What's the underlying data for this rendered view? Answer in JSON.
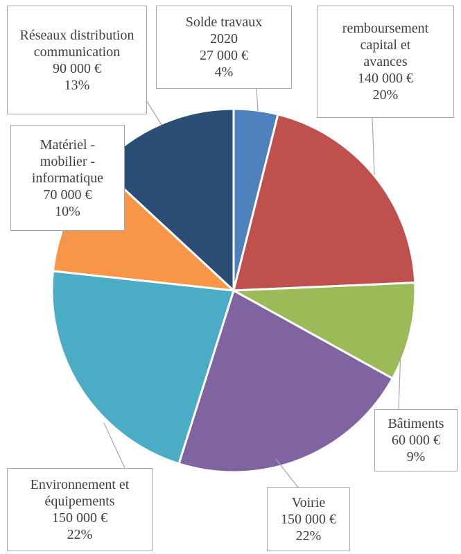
{
  "chart_data": {
    "type": "pie",
    "categories": [
      "Solde travaux 2020",
      "remboursement capital et avances",
      "Bâtiments",
      "Voirie",
      "Environnement et équipements",
      "Matériel - mobilier - informatique",
      "Réseaux distribution communication"
    ],
    "values": [
      27000,
      140000,
      60000,
      150000,
      150000,
      70000,
      90000
    ],
    "value_labels": [
      "27 000 €",
      "140 000 €",
      "60 000 €",
      "150 000 €",
      "150 000 €",
      "70 000 €",
      "90 000 €"
    ],
    "percents": [
      4,
      20,
      9,
      22,
      22,
      10,
      13
    ],
    "percent_labels": [
      "4%",
      "20%",
      "9%",
      "22%",
      "22%",
      "10%",
      "13%"
    ],
    "colors": [
      "#4f81bd",
      "#c0504d",
      "#9bbb59",
      "#8064a2",
      "#4bacc6",
      "#f79646",
      "#2c4d75"
    ]
  }
}
